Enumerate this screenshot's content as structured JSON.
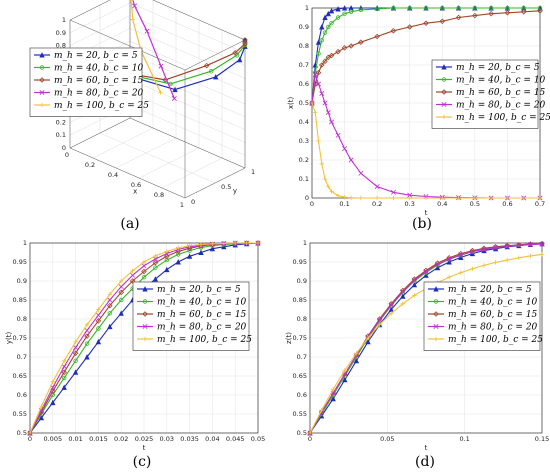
{
  "legend_labels": [
    "m_h = 20, b_c = 5",
    "m_h = 40, b_c = 10",
    "m_h = 60, b_c = 15",
    "m_h = 80, b_c = 20",
    "m_h = 100, b_c = 25"
  ],
  "series_colors": [
    "#1f2db8",
    "#39b52b",
    "#a0452b",
    "#c02fd6",
    "#f0c23a"
  ],
  "chart_data": [
    {
      "id": "a",
      "type": "line",
      "panel_label": "(a)",
      "projection": "3d",
      "xlabel": "x",
      "ylabel": "y",
      "zlabel": "z",
      "x_ticks": [
        "0",
        "0.2",
        "0.4",
        "0.6",
        "0.8",
        "1"
      ],
      "y_ticks": [
        "0",
        "0.5",
        "1"
      ],
      "z_ticks": [
        "0",
        "0.1",
        "0.2",
        "0.3",
        "0.4",
        "0.5",
        "0.6",
        "0.7",
        "0.8",
        "0.9",
        "1"
      ],
      "series": [
        {
          "name": "m_h = 20, b_c = 5",
          "x": [
            0.05,
            0.6,
            0.85,
            0.98,
            1.0,
            1.0
          ],
          "y": [
            0.55,
            0.6,
            0.8,
            0.95,
            1.0,
            1.0
          ],
          "z": [
            0.5,
            0.55,
            0.7,
            0.85,
            0.95,
            1.0
          ]
        },
        {
          "name": "m_h = 40, b_c = 10",
          "x": [
            0.05,
            0.55,
            0.8,
            0.95,
            1.0,
            1.0
          ],
          "y": [
            0.55,
            0.62,
            0.82,
            0.96,
            1.0,
            1.0
          ],
          "z": [
            0.5,
            0.57,
            0.72,
            0.87,
            0.96,
            1.0
          ]
        },
        {
          "name": "m_h = 60, b_c = 15",
          "x": [
            0.05,
            0.5,
            0.75,
            0.93,
            1.0,
            1.0
          ],
          "y": [
            0.55,
            0.63,
            0.84,
            0.97,
            1.0,
            1.0
          ],
          "z": [
            0.5,
            0.58,
            0.74,
            0.88,
            0.97,
            1.0
          ]
        },
        {
          "name": "m_h = 80, b_c = 20",
          "x": [
            0.62,
            0.4,
            0.2,
            0.05,
            0.01,
            0.0
          ],
          "y": [
            0.55,
            0.75,
            0.9,
            0.98,
            1.0,
            1.0
          ],
          "z": [
            0.5,
            0.62,
            0.78,
            0.9,
            0.97,
            1.0
          ]
        },
        {
          "name": "m_h = 100, b_c = 25",
          "x": [
            0.5,
            0.2,
            0.05,
            0.01,
            0.0,
            0.0
          ],
          "y": [
            0.55,
            0.8,
            0.95,
            1.0,
            1.0,
            1.0
          ],
          "z": [
            0.5,
            0.65,
            0.8,
            0.92,
            0.98,
            1.0
          ]
        }
      ]
    },
    {
      "id": "b",
      "type": "line",
      "panel_label": "(b)",
      "xlabel": "t",
      "ylabel": "x(t)",
      "xlim": [
        0,
        0.7
      ],
      "ylim": [
        0,
        1
      ],
      "x_ticks": [
        "0",
        "0.1",
        "0.2",
        "0.3",
        "0.4",
        "0.5",
        "0.6",
        "0.7"
      ],
      "y_ticks": [
        "0",
        "0.1",
        "0.2",
        "0.3",
        "0.4",
        "0.5",
        "0.6",
        "0.7",
        "0.8",
        "0.9",
        "1"
      ],
      "legend_position": "bottom-right",
      "x": [
        0,
        0.01,
        0.02,
        0.03,
        0.04,
        0.05,
        0.06,
        0.08,
        0.1,
        0.12,
        0.15,
        0.2,
        0.25,
        0.3,
        0.35,
        0.4,
        0.45,
        0.5,
        0.55,
        0.6,
        0.65,
        0.7
      ],
      "series": [
        {
          "name": "m_h = 20, b_c = 5",
          "values": [
            0.5,
            0.7,
            0.82,
            0.9,
            0.95,
            0.97,
            0.985,
            0.995,
            1,
            1,
            1,
            1,
            1,
            1,
            1,
            1,
            1,
            1,
            1,
            1,
            1,
            1
          ]
        },
        {
          "name": "m_h = 40, b_c = 10",
          "values": [
            0.5,
            0.66,
            0.76,
            0.83,
            0.87,
            0.9,
            0.92,
            0.95,
            0.97,
            0.98,
            0.99,
            0.995,
            1,
            1,
            1,
            1,
            1,
            1,
            1,
            1,
            1,
            1
          ]
        },
        {
          "name": "m_h = 60, b_c = 15",
          "values": [
            0.5,
            0.6,
            0.66,
            0.7,
            0.72,
            0.74,
            0.75,
            0.77,
            0.79,
            0.8,
            0.82,
            0.85,
            0.88,
            0.9,
            0.92,
            0.93,
            0.95,
            0.96,
            0.97,
            0.975,
            0.98,
            0.985
          ]
        },
        {
          "name": "m_h = 80, b_c = 20",
          "values": [
            0.5,
            0.65,
            0.6,
            0.55,
            0.5,
            0.45,
            0.4,
            0.33,
            0.26,
            0.2,
            0.13,
            0.06,
            0.03,
            0.015,
            0.008,
            0.004,
            0.002,
            0.001,
            0,
            0,
            0,
            0
          ]
        },
        {
          "name": "m_h = 100, b_c = 25",
          "values": [
            0.5,
            0.45,
            0.3,
            0.18,
            0.1,
            0.06,
            0.035,
            0.012,
            0.004,
            0.001,
            0,
            0,
            0,
            0,
            0,
            0,
            0,
            0,
            0,
            0,
            0,
            0
          ]
        }
      ]
    },
    {
      "id": "c",
      "type": "line",
      "panel_label": "(c)",
      "xlabel": "t",
      "ylabel": "y(t)",
      "xlim": [
        0,
        0.05
      ],
      "ylim": [
        0.5,
        1
      ],
      "x_ticks": [
        "0",
        "0.005",
        "0.01",
        "0.015",
        "0.02",
        "0.025",
        "0.03",
        "0.035",
        "0.04",
        "0.045",
        "0.05"
      ],
      "y_ticks": [
        "0.5",
        "0.55",
        "0.6",
        "0.65",
        "0.7",
        "0.75",
        "0.8",
        "0.85",
        "0.9",
        "0.95",
        "1"
      ],
      "legend_position": "right",
      "x": [
        0,
        0.0025,
        0.005,
        0.0075,
        0.01,
        0.0125,
        0.015,
        0.0175,
        0.02,
        0.0225,
        0.025,
        0.0275,
        0.03,
        0.0325,
        0.035,
        0.0375,
        0.04,
        0.0425,
        0.045,
        0.0475,
        0.05
      ],
      "series": [
        {
          "name": "m_h = 20, b_c = 5",
          "values": [
            0.5,
            0.54,
            0.58,
            0.62,
            0.66,
            0.7,
            0.74,
            0.78,
            0.815,
            0.85,
            0.88,
            0.905,
            0.93,
            0.95,
            0.965,
            0.975,
            0.985,
            0.99,
            0.995,
            0.998,
            1
          ]
        },
        {
          "name": "m_h = 40, b_c = 10",
          "values": [
            0.5,
            0.55,
            0.6,
            0.645,
            0.69,
            0.735,
            0.775,
            0.815,
            0.85,
            0.88,
            0.91,
            0.935,
            0.955,
            0.97,
            0.98,
            0.988,
            0.993,
            0.996,
            0.998,
            0.999,
            1
          ]
        },
        {
          "name": "m_h = 60, b_c = 15",
          "values": [
            0.5,
            0.555,
            0.61,
            0.66,
            0.71,
            0.755,
            0.795,
            0.835,
            0.87,
            0.9,
            0.925,
            0.948,
            0.965,
            0.978,
            0.986,
            0.992,
            0.996,
            0.998,
            0.999,
            1,
            1
          ]
        },
        {
          "name": "m_h = 80, b_c = 20",
          "values": [
            0.5,
            0.56,
            0.62,
            0.675,
            0.725,
            0.77,
            0.81,
            0.85,
            0.885,
            0.915,
            0.94,
            0.958,
            0.972,
            0.983,
            0.99,
            0.994,
            0.997,
            0.999,
            1,
            1,
            1
          ]
        },
        {
          "name": "m_h = 100, b_c = 25",
          "values": [
            0.5,
            0.57,
            0.635,
            0.69,
            0.74,
            0.785,
            0.825,
            0.865,
            0.9,
            0.927,
            0.95,
            0.966,
            0.978,
            0.987,
            0.993,
            0.996,
            0.998,
            0.999,
            1,
            1,
            1
          ]
        }
      ]
    },
    {
      "id": "d",
      "type": "line",
      "panel_label": "(d)",
      "xlabel": "t",
      "ylabel": "z(t)",
      "xlim": [
        0,
        0.15
      ],
      "ylim": [
        0.5,
        1
      ],
      "x_ticks": [
        "0",
        "0.05",
        "0.1",
        "0.15"
      ],
      "y_ticks": [
        "0.5",
        "0.55",
        "0.6",
        "0.65",
        "0.7",
        "0.75",
        "0.8",
        "0.85",
        "0.9",
        "0.95",
        "1"
      ],
      "legend_position": "right",
      "x": [
        0,
        0.0075,
        0.015,
        0.0225,
        0.03,
        0.0375,
        0.045,
        0.0525,
        0.06,
        0.0675,
        0.075,
        0.0825,
        0.09,
        0.0975,
        0.105,
        0.1125,
        0.12,
        0.1275,
        0.135,
        0.1425,
        0.15
      ],
      "series": [
        {
          "name": "m_h = 20, b_c = 5",
          "values": [
            0.5,
            0.545,
            0.59,
            0.64,
            0.69,
            0.74,
            0.785,
            0.825,
            0.86,
            0.89,
            0.915,
            0.935,
            0.95,
            0.962,
            0.972,
            0.98,
            0.985,
            0.99,
            0.993,
            0.996,
            0.998
          ]
        },
        {
          "name": "m_h = 40, b_c = 10",
          "values": [
            0.5,
            0.55,
            0.6,
            0.65,
            0.7,
            0.75,
            0.795,
            0.835,
            0.87,
            0.9,
            0.922,
            0.942,
            0.957,
            0.968,
            0.977,
            0.984,
            0.989,
            0.992,
            0.995,
            0.997,
            0.998
          ]
        },
        {
          "name": "m_h = 60, b_c = 15",
          "values": [
            0.5,
            0.555,
            0.605,
            0.655,
            0.705,
            0.755,
            0.8,
            0.84,
            0.875,
            0.905,
            0.928,
            0.947,
            0.961,
            0.972,
            0.98,
            0.986,
            0.99,
            0.993,
            0.995,
            0.997,
            0.998
          ]
        },
        {
          "name": "m_h = 80, b_c = 20",
          "values": [
            0.5,
            0.555,
            0.605,
            0.655,
            0.705,
            0.752,
            0.797,
            0.837,
            0.872,
            0.902,
            0.925,
            0.944,
            0.958,
            0.969,
            0.977,
            0.983,
            0.988,
            0.991,
            0.994,
            0.996,
            0.997
          ]
        },
        {
          "name": "m_h = 100, b_c = 25",
          "values": [
            0.5,
            0.56,
            0.615,
            0.665,
            0.71,
            0.75,
            0.785,
            0.815,
            0.84,
            0.862,
            0.88,
            0.896,
            0.91,
            0.922,
            0.932,
            0.941,
            0.949,
            0.955,
            0.961,
            0.966,
            0.97
          ]
        }
      ]
    }
  ]
}
